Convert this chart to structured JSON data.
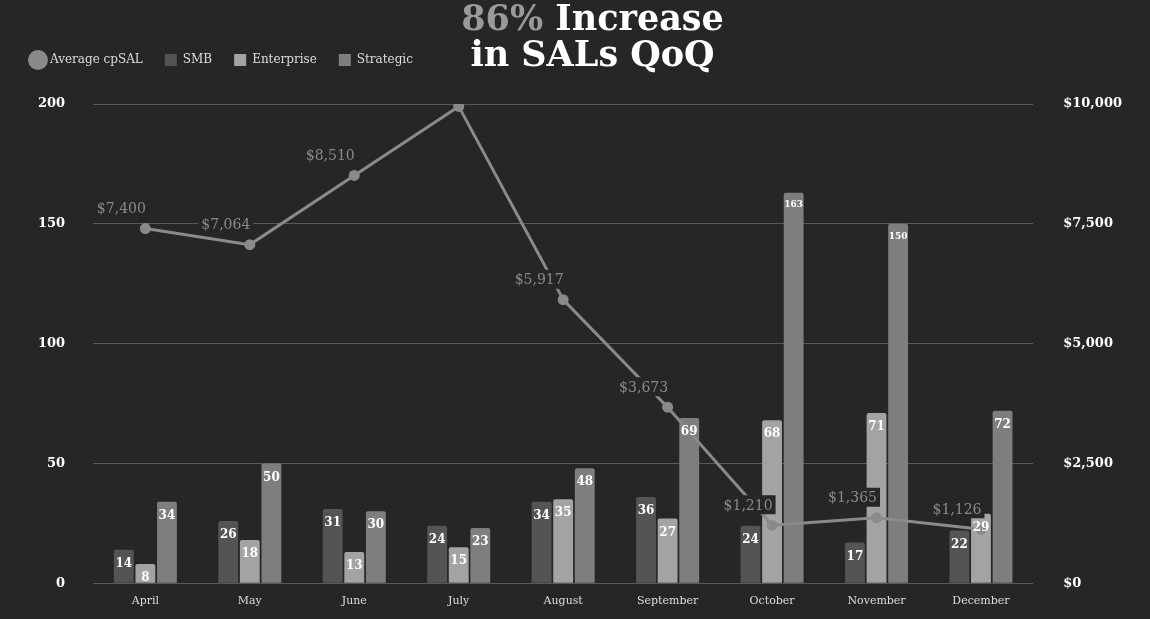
{
  "chart_data": {
    "type": "bar",
    "title": "86% Increase in SALs QoQ",
    "categories": [
      "April",
      "May",
      "June",
      "July",
      "August",
      "September",
      "October",
      "November",
      "December"
    ],
    "series": [
      {
        "name": "SMB",
        "color": "#545454",
        "values": [
          14,
          26,
          31,
          24,
          34,
          36,
          24,
          17,
          22
        ]
      },
      {
        "name": "Enterprise",
        "color": "#a3a3a3",
        "values": [
          8,
          18,
          13,
          15,
          35,
          27,
          68,
          71,
          29
        ]
      },
      {
        "name": "Strategic",
        "color": "#7e7e7e",
        "values": [
          34,
          50,
          30,
          23,
          48,
          69,
          163,
          150,
          72
        ]
      },
      {
        "name": "Average cpSAL",
        "type": "line",
        "axis": "y2",
        "color": "#8a8a8a",
        "values": [
          7400,
          7064,
          8510,
          9950,
          5917,
          3673,
          1210,
          1365,
          1126
        ],
        "value_labels": [
          "$7,400",
          "$7,064",
          "$8,510",
          null,
          "$5,917",
          "$3,673",
          "$1,210",
          "$1,365",
          "$1,126"
        ]
      }
    ],
    "ylim": [
      0,
      200
    ],
    "yticks": [
      0,
      50,
      100,
      150,
      200
    ],
    "y2lim": [
      0,
      10000
    ],
    "y2ticks": [
      {
        "value": 0,
        "label": "$0"
      },
      {
        "value": 2500,
        "label": "$2,500"
      },
      {
        "value": 5000,
        "label": "$5,000"
      },
      {
        "value": 7500,
        "label": "$7,500"
      },
      {
        "value": 10000,
        "label": "$10,000"
      }
    ],
    "grid": "y",
    "legend": "top left",
    "data_labels": true,
    "marker": "circle"
  }
}
